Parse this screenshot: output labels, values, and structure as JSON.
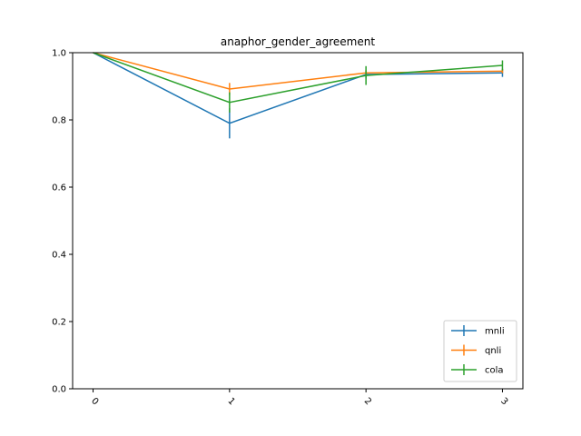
{
  "chart_data": {
    "type": "line",
    "title": "anaphor_gender_agreement",
    "xlabel": "",
    "ylabel": "",
    "x": [
      0,
      1,
      2,
      3
    ],
    "x_tick_labels": [
      "0",
      "1",
      "2",
      "3"
    ],
    "y_tick_labels": [
      "0.0",
      "0.2",
      "0.4",
      "0.6",
      "0.8",
      "1.0"
    ],
    "ylim": [
      0.0,
      1.0
    ],
    "xlim": [
      -0.15,
      3.15
    ],
    "grid": false,
    "legend_position": "lower-right",
    "series": [
      {
        "name": "mnli",
        "color": "#1f77b4",
        "values": [
          1.0,
          0.79,
          0.935,
          0.94
        ],
        "errors": [
          0.0,
          0.045,
          0.012,
          0.012
        ]
      },
      {
        "name": "qnli",
        "color": "#ff7f0e",
        "values": [
          1.0,
          0.892,
          0.94,
          0.945
        ],
        "errors": [
          0.0,
          0.018,
          0.008,
          0.006
        ]
      },
      {
        "name": "cola",
        "color": "#2ca02c",
        "values": [
          1.0,
          0.852,
          0.932,
          0.962
        ],
        "errors": [
          0.0,
          0.03,
          0.028,
          0.015
        ]
      }
    ]
  }
}
